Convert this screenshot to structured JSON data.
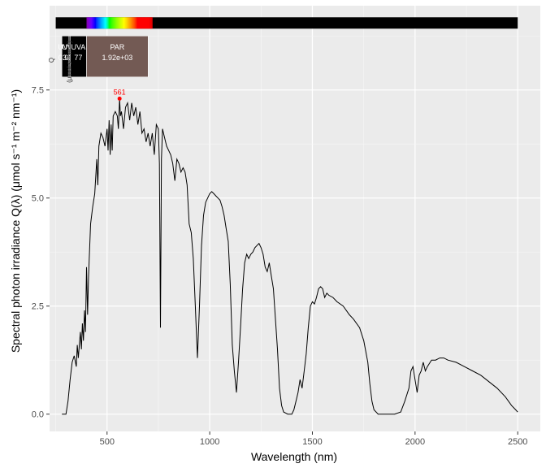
{
  "chart_data": {
    "type": "line",
    "xlabel": "Wavelength (nm)",
    "ylabel": "Spectral  photon  irradiance  Q(λ)  (μmol s⁻¹ m⁻² nm⁻¹)",
    "xlim": [
      220,
      2610
    ],
    "ylim": [
      -0.4,
      9.45
    ],
    "xticks": [
      500,
      1000,
      1500,
      2000,
      2500
    ],
    "yticks": [
      0.0,
      2.5,
      5.0,
      7.5
    ],
    "xtick_labels": [
      "500",
      "1000",
      "1500",
      "2000",
      "2500"
    ],
    "ytick_labels": [
      "0.0",
      "2.5",
      "5.0",
      "7.5"
    ],
    "grid": true,
    "background": "#ebebeb",
    "line_color": "#000000",
    "peak": {
      "x": 561,
      "y": 7.3,
      "label": "561",
      "color": "#ff0000"
    },
    "spectrum_bar": {
      "from": 250,
      "to": 2500,
      "y": 9.05
    },
    "band_boxes_label": {
      "line1": "Q",
      "line2": "(μmol s⁻¹ m⁻²)"
    },
    "bands": [
      {
        "name": "UVB",
        "value": "0.94",
        "from": 280,
        "to": 315,
        "color": "#000000"
      },
      {
        "name": "UVB",
        "value": "3.94",
        "from": 315,
        "to": 320,
        "color": "#000000"
      },
      {
        "name": "UVA",
        "value": "77",
        "from": 320,
        "to": 400,
        "color": "#000000"
      },
      {
        "name": "PAR",
        "value": "1.92e+03",
        "from": 400,
        "to": 700,
        "color": "#735a54"
      }
    ],
    "series": [
      {
        "points": [
          [
            280,
            0.0
          ],
          [
            300,
            0.0
          ],
          [
            310,
            0.3
          ],
          [
            320,
            0.8
          ],
          [
            330,
            1.2
          ],
          [
            340,
            1.35
          ],
          [
            350,
            1.1
          ],
          [
            355,
            1.6
          ],
          [
            360,
            1.3
          ],
          [
            370,
            1.9
          ],
          [
            375,
            1.5
          ],
          [
            380,
            2.1
          ],
          [
            385,
            1.7
          ],
          [
            390,
            2.4
          ],
          [
            395,
            1.9
          ],
          [
            400,
            3.4
          ],
          [
            405,
            2.3
          ],
          [
            410,
            3.2
          ],
          [
            420,
            4.4
          ],
          [
            430,
            4.8
          ],
          [
            440,
            5.1
          ],
          [
            450,
            5.9
          ],
          [
            455,
            5.3
          ],
          [
            460,
            6.2
          ],
          [
            470,
            6.5
          ],
          [
            480,
            6.4
          ],
          [
            490,
            6.2
          ],
          [
            500,
            6.6
          ],
          [
            505,
            6.1
          ],
          [
            510,
            6.8
          ],
          [
            515,
            6.0
          ],
          [
            520,
            6.7
          ],
          [
            525,
            6.1
          ],
          [
            530,
            6.9
          ],
          [
            540,
            7.0
          ],
          [
            550,
            6.9
          ],
          [
            555,
            6.6
          ],
          [
            561,
            7.3
          ],
          [
            565,
            6.9
          ],
          [
            570,
            7.0
          ],
          [
            580,
            6.6
          ],
          [
            590,
            7.1
          ],
          [
            600,
            7.2
          ],
          [
            610,
            6.8
          ],
          [
            620,
            7.2
          ],
          [
            630,
            6.9
          ],
          [
            640,
            7.1
          ],
          [
            650,
            6.7
          ],
          [
            660,
            7.0
          ],
          [
            670,
            6.5
          ],
          [
            680,
            6.6
          ],
          [
            690,
            6.3
          ],
          [
            700,
            6.5
          ],
          [
            710,
            6.2
          ],
          [
            720,
            6.5
          ],
          [
            730,
            6.0
          ],
          [
            740,
            6.7
          ],
          [
            750,
            6.6
          ],
          [
            755,
            5.8
          ],
          [
            760,
            2.0
          ],
          [
            765,
            5.9
          ],
          [
            770,
            6.6
          ],
          [
            780,
            6.4
          ],
          [
            790,
            6.2
          ],
          [
            800,
            6.1
          ],
          [
            810,
            6.0
          ],
          [
            820,
            5.8
          ],
          [
            830,
            5.4
          ],
          [
            840,
            5.9
          ],
          [
            850,
            5.8
          ],
          [
            860,
            5.6
          ],
          [
            870,
            5.7
          ],
          [
            880,
            5.6
          ],
          [
            890,
            5.3
          ],
          [
            900,
            4.4
          ],
          [
            910,
            4.2
          ],
          [
            920,
            3.6
          ],
          [
            930,
            2.5
          ],
          [
            940,
            1.3
          ],
          [
            950,
            2.5
          ],
          [
            960,
            3.9
          ],
          [
            970,
            4.6
          ],
          [
            980,
            4.9
          ],
          [
            990,
            5.0
          ],
          [
            1000,
            5.1
          ],
          [
            1010,
            5.15
          ],
          [
            1020,
            5.1
          ],
          [
            1030,
            5.05
          ],
          [
            1040,
            5.0
          ],
          [
            1050,
            4.95
          ],
          [
            1060,
            4.8
          ],
          [
            1070,
            4.6
          ],
          [
            1080,
            4.3
          ],
          [
            1090,
            4.0
          ],
          [
            1100,
            3.0
          ],
          [
            1110,
            1.6
          ],
          [
            1120,
            1.0
          ],
          [
            1130,
            0.5
          ],
          [
            1140,
            1.2
          ],
          [
            1150,
            2.0
          ],
          [
            1160,
            2.9
          ],
          [
            1170,
            3.5
          ],
          [
            1180,
            3.7
          ],
          [
            1190,
            3.6
          ],
          [
            1200,
            3.7
          ],
          [
            1210,
            3.75
          ],
          [
            1220,
            3.85
          ],
          [
            1230,
            3.9
          ],
          [
            1240,
            3.95
          ],
          [
            1250,
            3.85
          ],
          [
            1260,
            3.7
          ],
          [
            1270,
            3.4
          ],
          [
            1280,
            3.3
          ],
          [
            1290,
            3.5
          ],
          [
            1300,
            3.2
          ],
          [
            1310,
            2.9
          ],
          [
            1320,
            2.2
          ],
          [
            1330,
            1.5
          ],
          [
            1340,
            0.6
          ],
          [
            1350,
            0.2
          ],
          [
            1360,
            0.05
          ],
          [
            1380,
            0.0
          ],
          [
            1400,
            0.0
          ],
          [
            1410,
            0.1
          ],
          [
            1420,
            0.3
          ],
          [
            1430,
            0.5
          ],
          [
            1440,
            0.8
          ],
          [
            1450,
            0.6
          ],
          [
            1460,
            1.0
          ],
          [
            1470,
            1.4
          ],
          [
            1480,
            2.0
          ],
          [
            1490,
            2.5
          ],
          [
            1500,
            2.6
          ],
          [
            1510,
            2.55
          ],
          [
            1520,
            2.7
          ],
          [
            1530,
            2.9
          ],
          [
            1540,
            2.95
          ],
          [
            1550,
            2.9
          ],
          [
            1560,
            2.7
          ],
          [
            1570,
            2.8
          ],
          [
            1580,
            2.75
          ],
          [
            1600,
            2.7
          ],
          [
            1620,
            2.6
          ],
          [
            1650,
            2.5
          ],
          [
            1680,
            2.3
          ],
          [
            1700,
            2.2
          ],
          [
            1730,
            2.0
          ],
          [
            1750,
            1.7
          ],
          [
            1770,
            1.2
          ],
          [
            1780,
            0.7
          ],
          [
            1790,
            0.3
          ],
          [
            1800,
            0.1
          ],
          [
            1820,
            0.0
          ],
          [
            1900,
            0.0
          ],
          [
            1930,
            0.05
          ],
          [
            1950,
            0.3
          ],
          [
            1970,
            0.6
          ],
          [
            1980,
            1.0
          ],
          [
            1990,
            1.1
          ],
          [
            2000,
            0.8
          ],
          [
            2010,
            0.5
          ],
          [
            2020,
            0.9
          ],
          [
            2030,
            1.0
          ],
          [
            2040,
            1.2
          ],
          [
            2050,
            1.0
          ],
          [
            2060,
            1.1
          ],
          [
            2080,
            1.25
          ],
          [
            2100,
            1.25
          ],
          [
            2120,
            1.3
          ],
          [
            2140,
            1.3
          ],
          [
            2160,
            1.25
          ],
          [
            2200,
            1.2
          ],
          [
            2240,
            1.1
          ],
          [
            2280,
            1.0
          ],
          [
            2320,
            0.9
          ],
          [
            2360,
            0.75
          ],
          [
            2400,
            0.6
          ],
          [
            2440,
            0.4
          ],
          [
            2470,
            0.2
          ],
          [
            2490,
            0.1
          ],
          [
            2500,
            0.05
          ]
        ]
      }
    ]
  }
}
